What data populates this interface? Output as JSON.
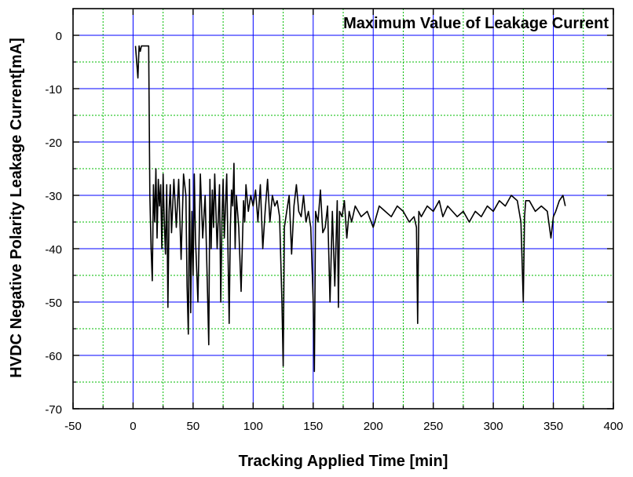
{
  "chart_data": {
    "type": "line",
    "title": "Maximum Value of Leakage Current",
    "xlabel": "Tracking Applied Time [min]",
    "ylabel": "HVDC Negative Polarity Leakage Current[mA]",
    "xlim": [
      -50,
      400
    ],
    "ylim": [
      -70,
      5
    ],
    "xticks": [
      -50,
      0,
      50,
      100,
      150,
      200,
      250,
      300,
      350,
      400
    ],
    "xtick_labels": [
      "-50",
      "0",
      "50",
      "100",
      "150",
      "200",
      "250",
      "300",
      "350",
      "400"
    ],
    "yticks": [
      0,
      -10,
      -20,
      -30,
      -40,
      -50,
      -60,
      -70
    ],
    "ytick_labels": [
      "0",
      "-10",
      "-20",
      "-30",
      "-40",
      "-50",
      "-60",
      "-70"
    ],
    "grid": true,
    "grid_colors": {
      "major": "#0000ff",
      "minor": "#00bb00"
    },
    "line_color": "#000000",
    "series": [
      {
        "x": [
          2,
          4,
          5,
          6,
          7,
          8,
          13,
          14,
          15,
          16,
          17,
          18,
          19,
          20,
          21,
          22,
          23,
          24,
          25,
          26,
          27,
          28,
          29,
          30,
          31,
          32,
          34,
          36,
          38,
          40,
          42,
          44,
          45,
          46,
          47,
          48,
          49,
          50,
          51,
          52,
          54,
          56,
          58,
          60,
          62,
          63,
          64,
          65,
          66,
          67,
          68,
          70,
          72,
          73,
          74,
          75,
          76,
          78,
          80,
          81,
          82,
          83,
          84,
          85,
          86,
          88,
          90,
          92,
          93,
          94,
          96,
          98,
          100,
          102,
          104,
          106,
          108,
          110,
          112,
          114,
          116,
          118,
          120,
          122,
          124,
          125,
          126,
          128,
          130,
          132,
          134,
          136,
          138,
          140,
          142,
          144,
          146,
          148,
          150,
          151,
          152,
          154,
          156,
          158,
          160,
          162,
          164,
          166,
          168,
          170,
          171,
          172,
          174,
          176,
          178,
          180,
          182,
          185,
          190,
          195,
          200,
          205,
          210,
          215,
          220,
          225,
          230,
          234,
          236,
          237,
          238,
          240,
          245,
          250,
          255,
          258,
          262,
          266,
          270,
          275,
          280,
          285,
          290,
          295,
          300,
          305,
          310,
          315,
          320,
          323,
          325,
          326,
          327,
          330,
          335,
          340,
          345,
          348,
          350,
          352,
          355,
          358,
          360
        ],
        "y": [
          -2,
          -8,
          -2,
          -3,
          -2,
          -2,
          -2,
          -30,
          -40,
          -46,
          -28,
          -35,
          -25,
          -38,
          -27,
          -32,
          -28,
          -40,
          -26,
          -35,
          -41,
          -28,
          -51,
          -33,
          -28,
          -37,
          -27,
          -36,
          -27,
          -42,
          -26,
          -30,
          -47,
          -56,
          -27,
          -52,
          -33,
          -45,
          -26,
          -38,
          -50,
          -26,
          -38,
          -30,
          -48,
          -58,
          -27,
          -40,
          -29,
          -36,
          -26,
          -40,
          -28,
          -50,
          -35,
          -27,
          -38,
          -26,
          -54,
          -36,
          -29,
          -32,
          -24,
          -40,
          -30,
          -36,
          -48,
          -31,
          -35,
          -28,
          -33,
          -30,
          -32,
          -29,
          -35,
          -28,
          -40,
          -33,
          -27,
          -35,
          -30,
          -32,
          -31,
          -34,
          -50,
          -62,
          -36,
          -33,
          -30,
          -41,
          -32,
          -28,
          -33,
          -34,
          -30,
          -35,
          -33,
          -36,
          -50,
          -63,
          -33,
          -35,
          -29,
          -37,
          -36,
          -32,
          -50,
          -33,
          -47,
          -31,
          -51,
          -33,
          -34,
          -31,
          -38,
          -33,
          -35,
          -32,
          -34,
          -33,
          -36,
          -32,
          -33,
          -34,
          -32,
          -33,
          -35,
          -34,
          -36,
          -54,
          -33,
          -34,
          -32,
          -33,
          -31,
          -34,
          -32,
          -33,
          -34,
          -33,
          -35,
          -33,
          -34,
          -32,
          -33,
          -31,
          -32,
          -30,
          -31,
          -35,
          -50,
          -34,
          -31,
          -31,
          -33,
          -32,
          -33,
          -38,
          -34,
          -33,
          -31,
          -30,
          -32
        ]
      }
    ]
  }
}
